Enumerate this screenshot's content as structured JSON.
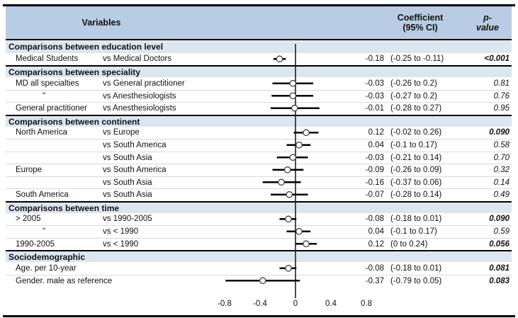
{
  "header": {
    "variables_label": "Variables",
    "coefficient_line1": "Coefficient",
    "coefficient_line2": "(95% CI)",
    "p_line1": "p-",
    "p_line2": "value"
  },
  "colors": {
    "header_bg": "#b8cce4",
    "section_bg": "#dce6f1",
    "row_separator": "#d9d9d9",
    "line_color": "#000000",
    "marker_fill": "#ffffff",
    "marker_stroke": "#3f3f3f"
  },
  "axis": {
    "ticks": [
      "-0.8",
      "-0.4",
      "0",
      "0.4",
      "0.8"
    ],
    "zero_reference": 0
  },
  "sections": [
    {
      "title": "Comparisons between education level",
      "rows": [
        {
          "variable": "Medical Students",
          "comparison": "vs Medical Doctors",
          "estimate": -0.18,
          "ci_low": -0.25,
          "ci_high": -0.11,
          "coef_text": "-0.18",
          "ci_text": "(-0.25 to -0.11)",
          "p_value": "<0.001",
          "significant": true
        }
      ]
    },
    {
      "title": "Comparisons between speciality",
      "rows": [
        {
          "variable": "MD all specialties",
          "comparison": "vs General practitioner",
          "estimate": -0.03,
          "ci_low": -0.26,
          "ci_high": 0.2,
          "coef_text": "-0.03",
          "ci_text": "(-0.26 to 0.2)",
          "p_value": "0.81",
          "significant": false
        },
        {
          "variable": "\"",
          "comparison": "vs Anesthesiologists",
          "estimate": -0.03,
          "ci_low": -0.27,
          "ci_high": 0.2,
          "coef_text": "-0.03",
          "ci_text": "(-0.27 to 0.2)",
          "p_value": "0.76",
          "significant": false
        },
        {
          "variable": "General practitioner",
          "comparison": "vs Anesthesiologists",
          "estimate": -0.01,
          "ci_low": -0.28,
          "ci_high": 0.27,
          "coef_text": "-0.01",
          "ci_text": "(-0.28 to 0.27)",
          "p_value": "0.95",
          "significant": false
        }
      ]
    },
    {
      "title": "Comparisons between continent",
      "rows": [
        {
          "variable": "North America",
          "comparison": "vs Europe",
          "estimate": 0.12,
          "ci_low": -0.02,
          "ci_high": 0.26,
          "coef_text": "0.12",
          "ci_text": "(-0.02 to 0.26)",
          "p_value": "0.090",
          "significant": true
        },
        {
          "variable": "",
          "comparison": "vs South America",
          "estimate": 0.04,
          "ci_low": -0.1,
          "ci_high": 0.17,
          "coef_text": "0.04",
          "ci_text": "(-0.1 to 0.17)",
          "p_value": "0.58",
          "significant": false
        },
        {
          "variable": "",
          "comparison": "vs South Asia",
          "estimate": -0.03,
          "ci_low": -0.21,
          "ci_high": 0.14,
          "coef_text": "-0.03",
          "ci_text": "(-0.21 to 0.14)",
          "p_value": "0.70",
          "significant": false
        },
        {
          "variable": "Europe",
          "comparison": "vs South America",
          "estimate": -0.09,
          "ci_low": -0.26,
          "ci_high": 0.09,
          "coef_text": "-0.09",
          "ci_text": "(-0.26 to 0.09)",
          "p_value": "0.32",
          "significant": false
        },
        {
          "variable": "",
          "comparison": "vs South Asia",
          "estimate": -0.16,
          "ci_low": -0.37,
          "ci_high": 0.06,
          "coef_text": "-0.16",
          "ci_text": "(-0.37 to 0.06)",
          "p_value": "0.14",
          "significant": false
        },
        {
          "variable": "South America",
          "comparison": "vs South Asia",
          "estimate": -0.07,
          "ci_low": -0.28,
          "ci_high": 0.14,
          "coef_text": "-0.07",
          "ci_text": "(-0.28 to 0.14)",
          "p_value": "0.49",
          "significant": false
        }
      ]
    },
    {
      "title": "Comparisons between time",
      "rows": [
        {
          "variable": "> 2005",
          "comparison": "vs 1990-2005",
          "estimate": -0.08,
          "ci_low": -0.18,
          "ci_high": 0.01,
          "coef_text": "-0.08",
          "ci_text": "(-0.18 to 0.01)",
          "p_value": "0.090",
          "significant": true
        },
        {
          "variable": "\"",
          "comparison": "vs < 1990",
          "estimate": 0.04,
          "ci_low": -0.1,
          "ci_high": 0.17,
          "coef_text": "0.04",
          "ci_text": "(-0.1 to 0.17)",
          "p_value": "0.59",
          "significant": false
        },
        {
          "variable": "1990-2005",
          "comparison": "vs < 1990",
          "estimate": 0.12,
          "ci_low": 0,
          "ci_high": 0.24,
          "coef_text": "0.12",
          "ci_text": "(0 to 0.24)",
          "p_value": "0.056",
          "significant": true
        }
      ]
    },
    {
      "title": "Sociodemographic",
      "rows": [
        {
          "variable": "Age. per 10-year",
          "comparison": "",
          "estimate": -0.08,
          "ci_low": -0.18,
          "ci_high": 0.01,
          "coef_text": "-0.08",
          "ci_text": "(-0.18 to 0.01)",
          "p_value": "0.081",
          "significant": true
        },
        {
          "variable": "Gender. male as reference",
          "comparison": "",
          "estimate": -0.37,
          "ci_low": -0.79,
          "ci_high": 0.05,
          "coef_text": "-0.37",
          "ci_text": "(-0.79 to 0.05)",
          "p_value": "0.083",
          "significant": true
        }
      ]
    }
  ],
  "chart_data": {
    "type": "forest",
    "title": "",
    "xlabel": "",
    "x_ticks": [
      -0.8,
      -0.4,
      0,
      0.4,
      0.8
    ],
    "xlim": [
      -1.05,
      0.95
    ],
    "zero_line": 0,
    "points": [
      {
        "label": "Medical Students vs Medical Doctors",
        "estimate": -0.18,
        "ci": [
          -0.25,
          -0.11
        ],
        "p": "<0.001"
      },
      {
        "label": "MD all specialties vs General practitioner",
        "estimate": -0.03,
        "ci": [
          -0.26,
          0.2
        ],
        "p": "0.81"
      },
      {
        "label": "MD all specialties vs Anesthesiologists",
        "estimate": -0.03,
        "ci": [
          -0.27,
          0.2
        ],
        "p": "0.76"
      },
      {
        "label": "General practitioner vs Anesthesiologists",
        "estimate": -0.01,
        "ci": [
          -0.28,
          0.27
        ],
        "p": "0.95"
      },
      {
        "label": "North America vs Europe",
        "estimate": 0.12,
        "ci": [
          -0.02,
          0.26
        ],
        "p": "0.090"
      },
      {
        "label": "North America vs South America",
        "estimate": 0.04,
        "ci": [
          -0.1,
          0.17
        ],
        "p": "0.58"
      },
      {
        "label": "North America vs South Asia",
        "estimate": -0.03,
        "ci": [
          -0.21,
          0.14
        ],
        "p": "0.70"
      },
      {
        "label": "Europe vs South America",
        "estimate": -0.09,
        "ci": [
          -0.26,
          0.09
        ],
        "p": "0.32"
      },
      {
        "label": "Europe vs South Asia",
        "estimate": -0.16,
        "ci": [
          -0.37,
          0.06
        ],
        "p": "0.14"
      },
      {
        "label": "South America vs South Asia",
        "estimate": -0.07,
        "ci": [
          -0.28,
          0.14
        ],
        "p": "0.49"
      },
      {
        "label": "> 2005 vs 1990-2005",
        "estimate": -0.08,
        "ci": [
          -0.18,
          0.01
        ],
        "p": "0.090"
      },
      {
        "label": "> 2005 vs < 1990",
        "estimate": 0.04,
        "ci": [
          -0.1,
          0.17
        ],
        "p": "0.59"
      },
      {
        "label": "1990-2005 vs < 1990",
        "estimate": 0.12,
        "ci": [
          0,
          0.24
        ],
        "p": "0.056"
      },
      {
        "label": "Age. per 10-year",
        "estimate": -0.08,
        "ci": [
          -0.18,
          0.01
        ],
        "p": "0.081"
      },
      {
        "label": "Gender. male as reference",
        "estimate": -0.37,
        "ci": [
          -0.79,
          0.05
        ],
        "p": "0.083"
      }
    ]
  }
}
